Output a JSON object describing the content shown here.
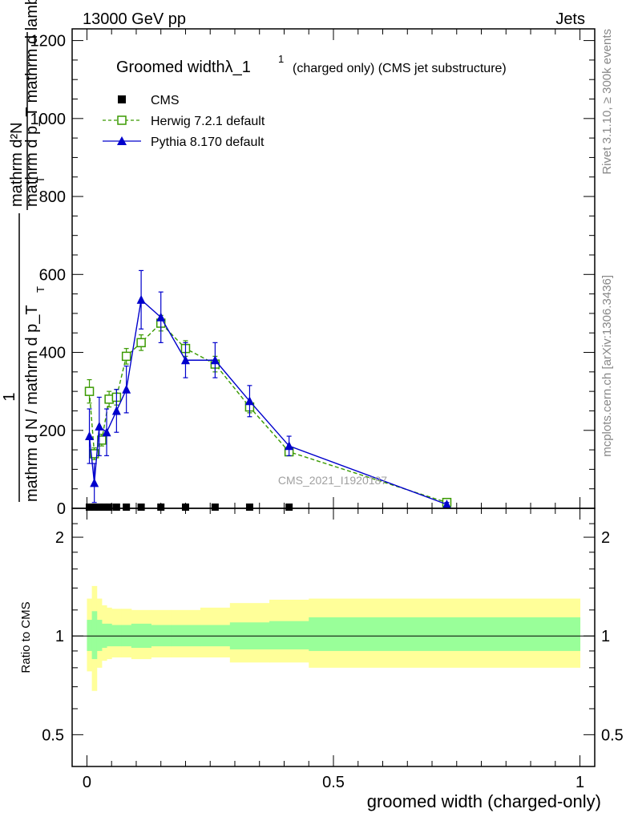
{
  "header": {
    "left": "13000 GeV pp",
    "right": "Jets",
    "side_top": "Rivet 3.1.10, ≥ 300k events",
    "side_bottom": "mcplots.cern.ch [arXiv:1306.3436]"
  },
  "watermark": "CMS_2021_I1920187",
  "title": {
    "main": "Groomed widthλ_1",
    "sup": "1",
    "sub": "(charged only) (CMS jet substructure)"
  },
  "legend": [
    {
      "label": "CMS",
      "color": "#000000",
      "marker": "filled-square"
    },
    {
      "label": "Herwig 7.2.1 default",
      "color": "#3a9a00",
      "marker": "open-square",
      "dash": true
    },
    {
      "label": "Pythia 8.170 default",
      "color": "#0000cc",
      "marker": "filled-triangle"
    }
  ],
  "axes": {
    "ylabel_top": {
      "numerator": "mathrm d²N",
      "denominator": "mathrm d p_T mathrm d lambda",
      "sub": "T"
    },
    "ylabel_bottom": {
      "numerator": "1",
      "denominator": "mathrm d N / mathrm d p_T",
      "sub": "T"
    },
    "ratio_ylabel": "Ratio to CMS",
    "xlabel": "groomed width (charged-only)"
  },
  "chart_data": [
    {
      "type": "line",
      "panel": "main",
      "xlim": [
        -0.03,
        1.03
      ],
      "ylim": [
        0,
        1230
      ],
      "x_ticks": [
        0,
        0.5,
        1
      ],
      "y_ticks": [
        0,
        200,
        400,
        600,
        800,
        1000,
        1200
      ],
      "y_tick_labels": [
        "0",
        "200",
        "400",
        "600",
        "800",
        "1000",
        "1200"
      ],
      "grid": false,
      "legend_position": "top-left",
      "series": [
        {
          "name": "CMS",
          "color": "#000000",
          "x": [
            0.005,
            0.015,
            0.025,
            0.035,
            0.045,
            0.06,
            0.08,
            0.11,
            0.15,
            0.2,
            0.26,
            0.33,
            0.41
          ],
          "y": [
            2,
            2,
            2,
            2,
            2,
            2,
            2,
            2,
            2,
            2,
            2,
            2,
            2
          ]
        },
        {
          "name": "Herwig 7.2.1 default",
          "color": "#3a9a00",
          "x": [
            0.005,
            0.015,
            0.03,
            0.045,
            0.06,
            0.08,
            0.11,
            0.15,
            0.2,
            0.26,
            0.33,
            0.41,
            0.73
          ],
          "y": [
            300,
            140,
            175,
            280,
            285,
            390,
            425,
            475,
            410,
            370,
            260,
            145,
            15
          ],
          "yerr": [
            30,
            15,
            15,
            20,
            20,
            20,
            20,
            20,
            20,
            20,
            15,
            10,
            3
          ]
        },
        {
          "name": "Pythia 8.170 default",
          "color": "#0000cc",
          "x": [
            0.005,
            0.015,
            0.025,
            0.04,
            0.06,
            0.08,
            0.11,
            0.15,
            0.2,
            0.26,
            0.33,
            0.41,
            0.73
          ],
          "y": [
            185,
            65,
            210,
            195,
            250,
            305,
            535,
            490,
            380,
            380,
            275,
            160,
            10
          ],
          "yerr": [
            70,
            50,
            75,
            60,
            55,
            60,
            75,
            65,
            45,
            45,
            40,
            25,
            5
          ]
        }
      ]
    },
    {
      "type": "area",
      "panel": "ratio",
      "ylabel": "Ratio to CMS",
      "xlabel": "groomed width (charged-only)",
      "xlim": [
        -0.03,
        1.03
      ],
      "ylim": [
        0.4,
        2.45
      ],
      "y_scale": "log",
      "x_ticks": [
        0,
        0.5,
        1
      ],
      "x_tick_labels": [
        "0",
        "0.5",
        "1"
      ],
      "y_ticks": [
        0.5,
        1,
        2
      ],
      "y_tick_labels": [
        "0.5",
        "1",
        "2"
      ],
      "reference_line": 1,
      "band_edges": [
        0,
        0.01,
        0.02,
        0.03,
        0.04,
        0.05,
        0.07,
        0.09,
        0.13,
        0.17,
        0.23,
        0.29,
        0.37,
        0.45,
        1.0
      ],
      "outer_band": {
        "color": "#ffff99",
        "lower": [
          0.78,
          0.68,
          0.8,
          0.84,
          0.85,
          0.86,
          0.86,
          0.85,
          0.86,
          0.86,
          0.86,
          0.83,
          0.83,
          0.8
        ],
        "upper": [
          1.3,
          1.42,
          1.3,
          1.24,
          1.22,
          1.21,
          1.21,
          1.2,
          1.2,
          1.2,
          1.22,
          1.26,
          1.29,
          1.3
        ]
      },
      "inner_band": {
        "color": "#99ff99",
        "lower": [
          0.9,
          0.85,
          0.9,
          0.92,
          0.93,
          0.93,
          0.93,
          0.92,
          0.93,
          0.93,
          0.93,
          0.91,
          0.91,
          0.9
        ],
        "upper": [
          1.12,
          1.19,
          1.12,
          1.09,
          1.09,
          1.08,
          1.08,
          1.09,
          1.08,
          1.08,
          1.08,
          1.1,
          1.11,
          1.14
        ]
      }
    }
  ]
}
